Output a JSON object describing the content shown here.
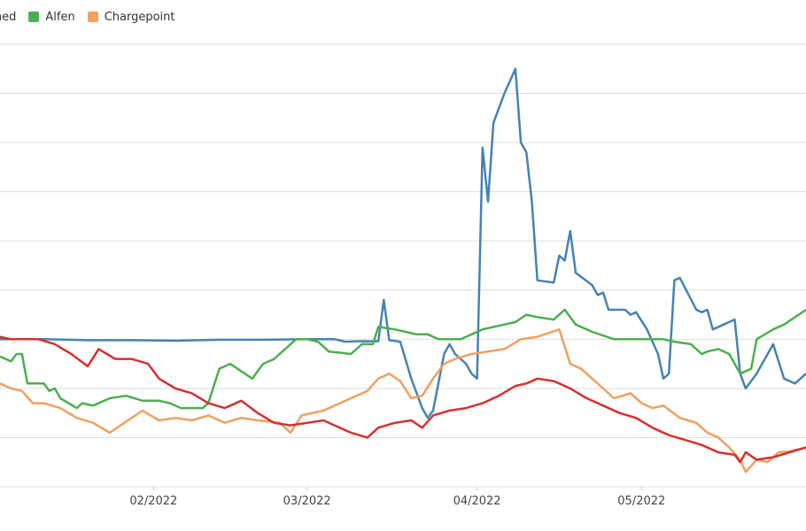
{
  "chart_data": {
    "type": "line",
    "title": "",
    "xlabel": "",
    "ylabel": "",
    "grid": true,
    "legend_placement": "top-left",
    "x_range": [
      "2022-01-04",
      "2022-05-31"
    ],
    "y_range": [
      0,
      9
    ],
    "x_ticks": [
      {
        "date": "2022-02-01",
        "label": "02/2022"
      },
      {
        "date": "2022-03-01",
        "label": "03/2022"
      },
      {
        "date": "2022-04-01",
        "label": "04/2022"
      },
      {
        "date": "2022-05-01",
        "label": "05/2022"
      }
    ],
    "legend_entries": [
      {
        "label": "stned",
        "color": "#e8a05a",
        "partial": true
      },
      {
        "label": "Alfen",
        "color": "#4caf50"
      },
      {
        "label": "Chargepoint",
        "color": "#f0a060"
      }
    ],
    "series": [
      {
        "name": "Fastned",
        "color": "#4682b4",
        "points": [
          [
            "2022-01-04",
            3.0
          ],
          [
            "2022-01-12",
            3.0
          ],
          [
            "2022-01-20",
            2.98
          ],
          [
            "2022-01-28",
            2.98
          ],
          [
            "2022-02-05",
            2.97
          ],
          [
            "2022-02-13",
            2.99
          ],
          [
            "2022-02-21",
            2.99
          ],
          [
            "2022-03-01",
            3.0
          ],
          [
            "2022-03-06",
            3.0
          ],
          [
            "2022-03-08",
            2.95
          ],
          [
            "2022-03-10",
            2.96
          ],
          [
            "2022-03-14",
            2.96
          ],
          [
            "2022-03-15",
            3.8
          ],
          [
            "2022-03-16",
            2.98
          ],
          [
            "2022-03-18",
            2.95
          ],
          [
            "2022-03-20",
            2.2
          ],
          [
            "2022-03-22",
            1.6
          ],
          [
            "2022-03-23",
            1.4
          ],
          [
            "2022-03-24",
            1.55
          ],
          [
            "2022-03-26",
            2.7
          ],
          [
            "2022-03-27",
            2.9
          ],
          [
            "2022-03-28",
            2.7
          ],
          [
            "2022-03-30",
            2.5
          ],
          [
            "2022-03-31",
            2.3
          ],
          [
            "2022-04-01",
            2.2
          ],
          [
            "2022-04-02",
            6.9
          ],
          [
            "2022-04-03",
            5.8
          ],
          [
            "2022-04-04",
            7.4
          ],
          [
            "2022-04-06",
            8.0
          ],
          [
            "2022-04-08",
            8.5
          ],
          [
            "2022-04-09",
            7.0
          ],
          [
            "2022-04-10",
            6.8
          ],
          [
            "2022-04-11",
            5.8
          ],
          [
            "2022-04-12",
            4.2
          ],
          [
            "2022-04-15",
            4.15
          ],
          [
            "2022-04-16",
            4.7
          ],
          [
            "2022-04-17",
            4.6
          ],
          [
            "2022-04-18",
            5.2
          ],
          [
            "2022-04-19",
            4.35
          ],
          [
            "2022-04-22",
            4.1
          ],
          [
            "2022-04-23",
            3.9
          ],
          [
            "2022-04-24",
            3.95
          ],
          [
            "2022-04-25",
            3.6
          ],
          [
            "2022-04-28",
            3.6
          ],
          [
            "2022-04-29",
            3.5
          ],
          [
            "2022-04-30",
            3.55
          ],
          [
            "2022-05-02",
            3.2
          ],
          [
            "2022-05-04",
            2.7
          ],
          [
            "2022-05-05",
            2.2
          ],
          [
            "2022-05-06",
            2.3
          ],
          [
            "2022-05-07",
            4.2
          ],
          [
            "2022-05-08",
            4.25
          ],
          [
            "2022-05-11",
            3.6
          ],
          [
            "2022-05-12",
            3.55
          ],
          [
            "2022-05-13",
            3.6
          ],
          [
            "2022-05-14",
            3.2
          ],
          [
            "2022-05-16",
            3.3
          ],
          [
            "2022-05-18",
            3.4
          ],
          [
            "2022-05-19",
            2.3
          ],
          [
            "2022-05-20",
            2.0
          ],
          [
            "2022-05-22",
            2.3
          ],
          [
            "2022-05-25",
            2.9
          ],
          [
            "2022-05-27",
            2.2
          ],
          [
            "2022-05-29",
            2.1
          ],
          [
            "2022-05-31",
            2.3
          ]
        ]
      },
      {
        "name": "Alfen",
        "color": "#4caf50",
        "points": [
          [
            "2022-01-04",
            2.65
          ],
          [
            "2022-01-06",
            2.55
          ],
          [
            "2022-01-07",
            2.7
          ],
          [
            "2022-01-08",
            2.7
          ],
          [
            "2022-01-09",
            2.1
          ],
          [
            "2022-01-12",
            2.1
          ],
          [
            "2022-01-13",
            1.95
          ],
          [
            "2022-01-14",
            2.0
          ],
          [
            "2022-01-15",
            1.8
          ],
          [
            "2022-01-18",
            1.6
          ],
          [
            "2022-01-19",
            1.7
          ],
          [
            "2022-01-21",
            1.65
          ],
          [
            "2022-01-24",
            1.8
          ],
          [
            "2022-01-27",
            1.85
          ],
          [
            "2022-01-30",
            1.75
          ],
          [
            "2022-02-02",
            1.75
          ],
          [
            "2022-02-04",
            1.7
          ],
          [
            "2022-02-06",
            1.6
          ],
          [
            "2022-02-10",
            1.6
          ],
          [
            "2022-02-11",
            1.7
          ],
          [
            "2022-02-13",
            2.4
          ],
          [
            "2022-02-15",
            2.5
          ],
          [
            "2022-02-19",
            2.2
          ],
          [
            "2022-02-21",
            2.5
          ],
          [
            "2022-02-23",
            2.6
          ],
          [
            "2022-02-25",
            2.8
          ],
          [
            "2022-02-27",
            3.0
          ],
          [
            "2022-03-01",
            3.0
          ],
          [
            "2022-03-03",
            2.95
          ],
          [
            "2022-03-05",
            2.75
          ],
          [
            "2022-03-09",
            2.7
          ],
          [
            "2022-03-11",
            2.9
          ],
          [
            "2022-03-13",
            2.9
          ],
          [
            "2022-03-14",
            3.25
          ],
          [
            "2022-03-17",
            3.2
          ],
          [
            "2022-03-19",
            3.15
          ],
          [
            "2022-03-21",
            3.1
          ],
          [
            "2022-03-23",
            3.1
          ],
          [
            "2022-03-25",
            3.0
          ],
          [
            "2022-03-27",
            3.0
          ],
          [
            "2022-03-29",
            3.0
          ],
          [
            "2022-03-31",
            3.1
          ],
          [
            "2022-04-02",
            3.2
          ],
          [
            "2022-04-06",
            3.3
          ],
          [
            "2022-04-08",
            3.35
          ],
          [
            "2022-04-10",
            3.5
          ],
          [
            "2022-04-12",
            3.45
          ],
          [
            "2022-04-15",
            3.4
          ],
          [
            "2022-04-17",
            3.6
          ],
          [
            "2022-04-19",
            3.3
          ],
          [
            "2022-04-22",
            3.15
          ],
          [
            "2022-04-26",
            3.0
          ],
          [
            "2022-05-02",
            3.0
          ],
          [
            "2022-05-05",
            3.0
          ],
          [
            "2022-05-07",
            2.95
          ],
          [
            "2022-05-10",
            2.9
          ],
          [
            "2022-05-12",
            2.7
          ],
          [
            "2022-05-13",
            2.75
          ],
          [
            "2022-05-15",
            2.8
          ],
          [
            "2022-05-17",
            2.7
          ],
          [
            "2022-05-19",
            2.3
          ],
          [
            "2022-05-21",
            2.4
          ],
          [
            "2022-05-22",
            3.0
          ],
          [
            "2022-05-25",
            3.2
          ],
          [
            "2022-05-27",
            3.3
          ],
          [
            "2022-05-29",
            3.45
          ],
          [
            "2022-05-31",
            3.6
          ]
        ]
      },
      {
        "name": "Chargepoint",
        "color": "#f0a060",
        "points": [
          [
            "2022-01-04",
            2.1
          ],
          [
            "2022-01-06",
            2.0
          ],
          [
            "2022-01-08",
            1.95
          ],
          [
            "2022-01-10",
            1.7
          ],
          [
            "2022-01-12",
            1.7
          ],
          [
            "2022-01-15",
            1.6
          ],
          [
            "2022-01-18",
            1.4
          ],
          [
            "2022-01-21",
            1.3
          ],
          [
            "2022-01-24",
            1.1
          ],
          [
            "2022-01-26",
            1.25
          ],
          [
            "2022-01-30",
            1.55
          ],
          [
            "2022-02-02",
            1.35
          ],
          [
            "2022-02-05",
            1.4
          ],
          [
            "2022-02-08",
            1.35
          ],
          [
            "2022-02-11",
            1.45
          ],
          [
            "2022-02-14",
            1.3
          ],
          [
            "2022-02-17",
            1.4
          ],
          [
            "2022-02-20",
            1.35
          ],
          [
            "2022-02-24",
            1.3
          ],
          [
            "2022-02-26",
            1.1
          ],
          [
            "2022-02-28",
            1.45
          ],
          [
            "2022-03-02",
            1.5
          ],
          [
            "2022-03-04",
            1.55
          ],
          [
            "2022-03-07",
            1.7
          ],
          [
            "2022-03-09",
            1.8
          ],
          [
            "2022-03-12",
            1.95
          ],
          [
            "2022-03-14",
            2.2
          ],
          [
            "2022-03-16",
            2.3
          ],
          [
            "2022-03-18",
            2.15
          ],
          [
            "2022-03-20",
            1.8
          ],
          [
            "2022-03-22",
            1.85
          ],
          [
            "2022-03-24",
            2.2
          ],
          [
            "2022-03-26",
            2.5
          ],
          [
            "2022-03-28",
            2.6
          ],
          [
            "2022-03-31",
            2.7
          ],
          [
            "2022-04-03",
            2.75
          ],
          [
            "2022-04-06",
            2.8
          ],
          [
            "2022-04-09",
            3.0
          ],
          [
            "2022-04-12",
            3.05
          ],
          [
            "2022-04-16",
            3.2
          ],
          [
            "2022-04-18",
            2.5
          ],
          [
            "2022-04-20",
            2.4
          ],
          [
            "2022-04-23",
            2.1
          ],
          [
            "2022-04-26",
            1.8
          ],
          [
            "2022-04-29",
            1.9
          ],
          [
            "2022-05-01",
            1.7
          ],
          [
            "2022-05-03",
            1.6
          ],
          [
            "2022-05-05",
            1.65
          ],
          [
            "2022-05-08",
            1.4
          ],
          [
            "2022-05-11",
            1.3
          ],
          [
            "2022-05-13",
            1.1
          ],
          [
            "2022-05-15",
            1.0
          ],
          [
            "2022-05-17",
            0.8
          ],
          [
            "2022-05-19",
            0.55
          ],
          [
            "2022-05-20",
            0.3
          ],
          [
            "2022-05-22",
            0.55
          ],
          [
            "2022-05-24",
            0.5
          ],
          [
            "2022-05-26",
            0.7
          ],
          [
            "2022-05-28",
            0.72
          ],
          [
            "2022-05-31",
            0.8
          ]
        ]
      },
      {
        "name": "",
        "color": "#d63031",
        "points": [
          [
            "2022-01-04",
            3.05
          ],
          [
            "2022-01-06",
            3.0
          ],
          [
            "2022-01-08",
            3.0
          ],
          [
            "2022-01-11",
            3.0
          ],
          [
            "2022-01-14",
            2.9
          ],
          [
            "2022-01-17",
            2.7
          ],
          [
            "2022-01-20",
            2.45
          ],
          [
            "2022-01-22",
            2.8
          ],
          [
            "2022-01-25",
            2.6
          ],
          [
            "2022-01-28",
            2.6
          ],
          [
            "2022-01-31",
            2.5
          ],
          [
            "2022-02-02",
            2.2
          ],
          [
            "2022-02-05",
            2.0
          ],
          [
            "2022-02-08",
            1.9
          ],
          [
            "2022-02-11",
            1.7
          ],
          [
            "2022-02-14",
            1.6
          ],
          [
            "2022-02-17",
            1.75
          ],
          [
            "2022-02-20",
            1.5
          ],
          [
            "2022-02-23",
            1.3
          ],
          [
            "2022-02-26",
            1.25
          ],
          [
            "2022-03-01",
            1.3
          ],
          [
            "2022-03-04",
            1.35
          ],
          [
            "2022-03-06",
            1.25
          ],
          [
            "2022-03-09",
            1.1
          ],
          [
            "2022-03-12",
            1.0
          ],
          [
            "2022-03-14",
            1.2
          ],
          [
            "2022-03-17",
            1.3
          ],
          [
            "2022-03-20",
            1.35
          ],
          [
            "2022-03-22",
            1.2
          ],
          [
            "2022-03-24",
            1.45
          ],
          [
            "2022-03-27",
            1.55
          ],
          [
            "2022-03-30",
            1.6
          ],
          [
            "2022-04-02",
            1.7
          ],
          [
            "2022-04-05",
            1.85
          ],
          [
            "2022-04-08",
            2.05
          ],
          [
            "2022-04-10",
            2.1
          ],
          [
            "2022-04-12",
            2.2
          ],
          [
            "2022-04-15",
            2.15
          ],
          [
            "2022-04-18",
            2.0
          ],
          [
            "2022-04-21",
            1.8
          ],
          [
            "2022-04-24",
            1.65
          ],
          [
            "2022-04-27",
            1.5
          ],
          [
            "2022-04-30",
            1.4
          ],
          [
            "2022-05-03",
            1.2
          ],
          [
            "2022-05-06",
            1.05
          ],
          [
            "2022-05-09",
            0.95
          ],
          [
            "2022-05-12",
            0.85
          ],
          [
            "2022-05-15",
            0.7
          ],
          [
            "2022-05-18",
            0.65
          ],
          [
            "2022-05-19",
            0.5
          ],
          [
            "2022-05-20",
            0.7
          ],
          [
            "2022-05-22",
            0.55
          ],
          [
            "2022-05-25",
            0.6
          ],
          [
            "2022-05-28",
            0.7
          ],
          [
            "2022-05-31",
            0.8
          ]
        ]
      }
    ]
  }
}
